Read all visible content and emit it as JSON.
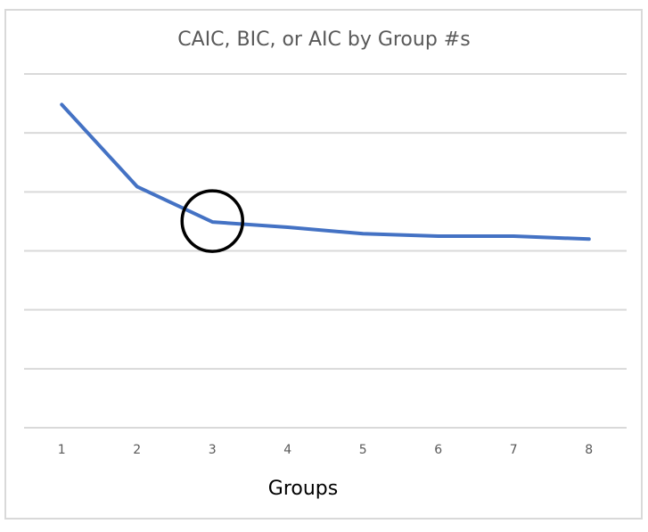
{
  "chart_data": {
    "type": "line",
    "title": "CAIC, BIC, or AIC by Group #s",
    "xlabel": "Groups",
    "ylabel": "",
    "categories": [
      "1",
      "2",
      "3",
      "4",
      "5",
      "6",
      "7",
      "8"
    ],
    "series": [
      {
        "name": "CAIC/BIC/AIC",
        "color": "#4472c4",
        "values": [
          5.48,
          4.09,
          3.49,
          3.4,
          3.29,
          3.25,
          3.25,
          3.2
        ]
      }
    ],
    "ylim": [
      0,
      6
    ],
    "y_tick_labels_visible": false,
    "y_units_note": "relative units (gridline intervals); no y-axis labels shown",
    "grid": true,
    "gridline_count": 7,
    "legend": null,
    "annotations": [
      {
        "type": "circle",
        "target_category": "3",
        "color": "#000000",
        "description": "elbow highlighted at 3 groups"
      }
    ]
  },
  "colors": {
    "line": "#4472c4",
    "grid": "#d9d9d9",
    "title": "#595959",
    "tick_label": "#595959",
    "annotation": "#000000"
  }
}
